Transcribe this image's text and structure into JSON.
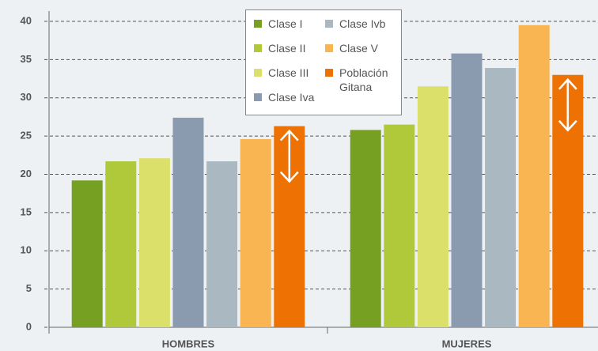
{
  "chart_data": {
    "type": "bar",
    "categories": [
      "HOMBRES",
      "MUJERES"
    ],
    "series": [
      {
        "name": "Clase I",
        "color": "#76a021",
        "values": [
          19.2,
          25.8
        ]
      },
      {
        "name": "Clase II",
        "color": "#afc93b",
        "values": [
          21.7,
          26.5
        ]
      },
      {
        "name": "Clase III",
        "color": "#dbe06b",
        "values": [
          22.1,
          31.5
        ]
      },
      {
        "name": "Clase Iva",
        "color": "#8a9bb0",
        "values": [
          27.4,
          35.8
        ]
      },
      {
        "name": "Clase Ivb",
        "color": "#a9b8c1",
        "values": [
          21.7,
          33.9
        ]
      },
      {
        "name": "Clase V",
        "color": "#f8b551",
        "values": [
          24.6,
          39.5
        ]
      },
      {
        "name": "Población Gitana",
        "color": "#ee7203",
        "values": [
          26.3,
          33.0
        ]
      }
    ],
    "ylim": [
      0,
      40
    ],
    "yticks": [
      0,
      5,
      10,
      15,
      20,
      25,
      30,
      35,
      40
    ],
    "grid": true
  }
}
